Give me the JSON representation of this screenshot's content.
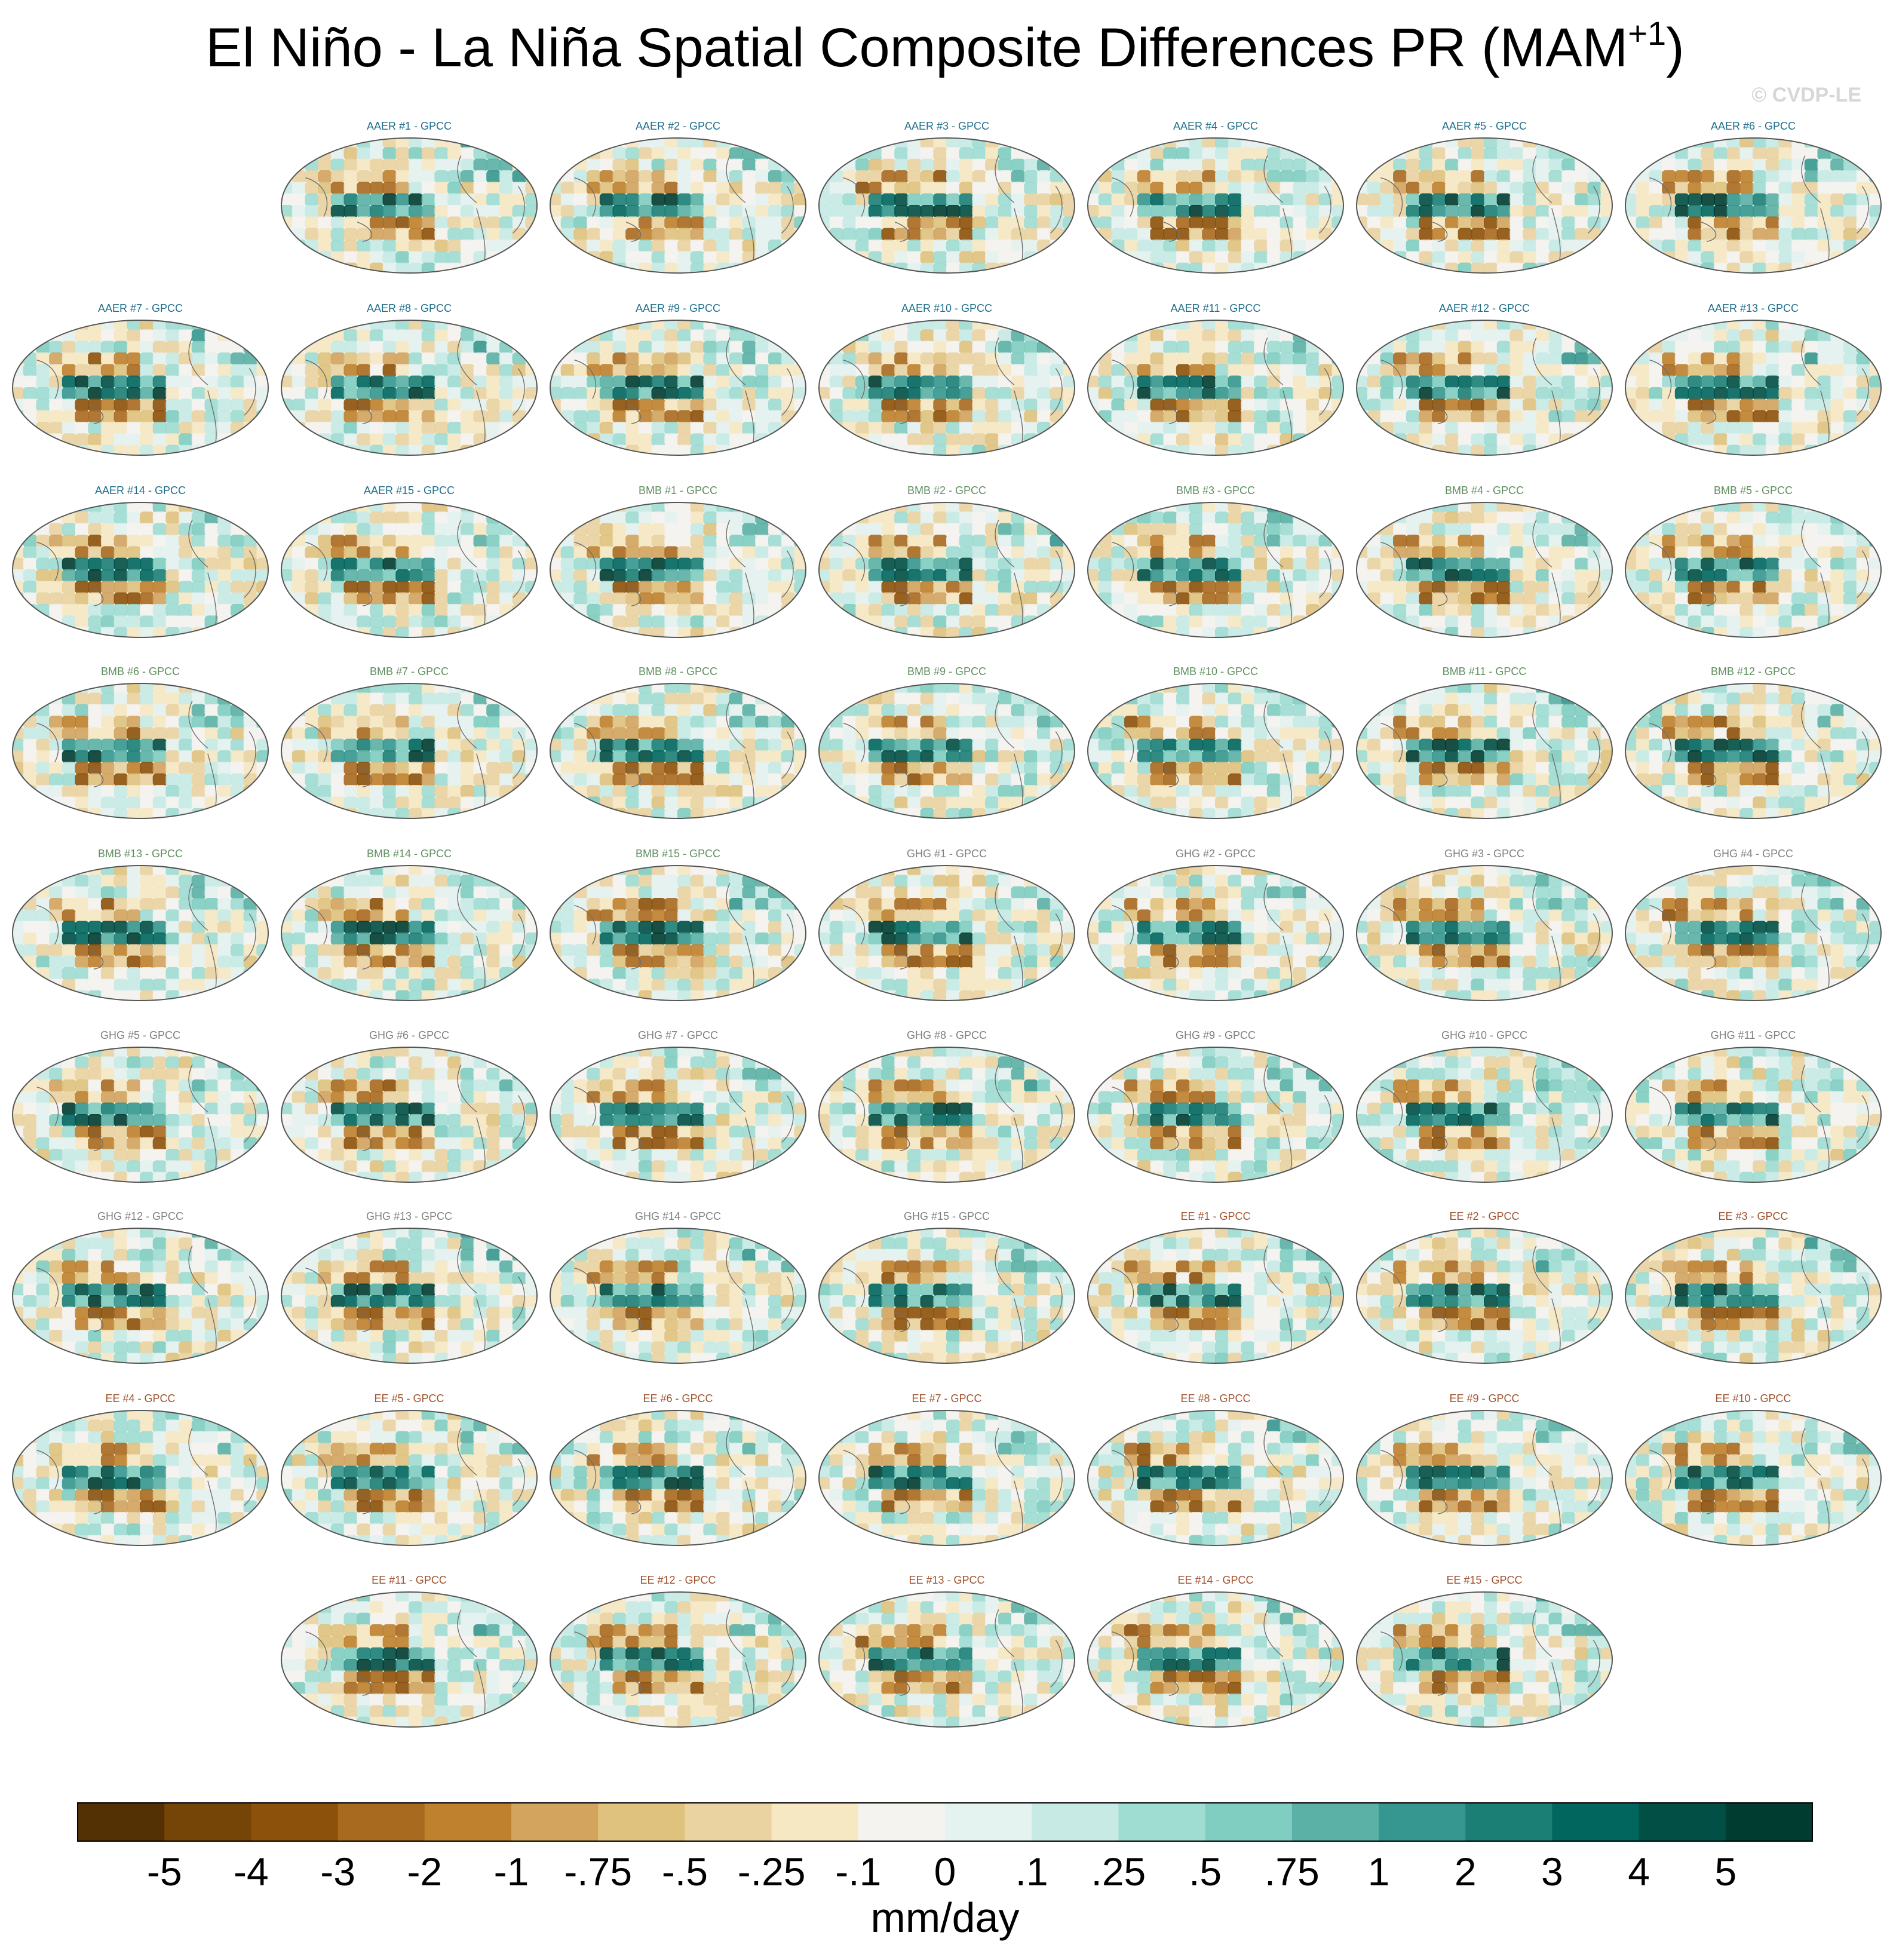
{
  "title": "El Niño - La Niña Spatial Composite Differences PR (MAM",
  "title_superscript": "+1",
  "title_close": ")",
  "copyright": "© CVDP-LE",
  "panel_groups": {
    "AAER": "#1f6f8b",
    "BMB": "#5f8f5f",
    "GHG": "#808080",
    "EE": "#a0522d"
  },
  "chart_data": {
    "type": "heatmap",
    "projection": "Robinson-like global map panels",
    "variable": "PR",
    "season": "MAM+1",
    "panels": [
      {
        "label": "AAER #1 - GPCC",
        "group": "AAER"
      },
      {
        "label": "AAER #2 - GPCC",
        "group": "AAER"
      },
      {
        "label": "AAER #3 - GPCC",
        "group": "AAER"
      },
      {
        "label": "AAER #4 - GPCC",
        "group": "AAER"
      },
      {
        "label": "AAER #5 - GPCC",
        "group": "AAER"
      },
      {
        "label": "AAER #6 - GPCC",
        "group": "AAER"
      },
      {
        "label": "AAER #7 - GPCC",
        "group": "AAER"
      },
      {
        "label": "AAER #8 - GPCC",
        "group": "AAER"
      },
      {
        "label": "AAER #9 - GPCC",
        "group": "AAER"
      },
      {
        "label": "AAER #10 - GPCC",
        "group": "AAER"
      },
      {
        "label": "AAER #11 - GPCC",
        "group": "AAER"
      },
      {
        "label": "AAER #12 - GPCC",
        "group": "AAER"
      },
      {
        "label": "AAER #13 - GPCC",
        "group": "AAER"
      },
      {
        "label": "AAER #14 - GPCC",
        "group": "AAER"
      },
      {
        "label": "AAER #15 - GPCC",
        "group": "AAER"
      },
      {
        "label": "BMB #1 - GPCC",
        "group": "BMB"
      },
      {
        "label": "BMB #2 - GPCC",
        "group": "BMB"
      },
      {
        "label": "BMB #3 - GPCC",
        "group": "BMB"
      },
      {
        "label": "BMB #4 - GPCC",
        "group": "BMB"
      },
      {
        "label": "BMB #5 - GPCC",
        "group": "BMB"
      },
      {
        "label": "BMB #6 - GPCC",
        "group": "BMB"
      },
      {
        "label": "BMB #7 - GPCC",
        "group": "BMB"
      },
      {
        "label": "BMB #8 - GPCC",
        "group": "BMB"
      },
      {
        "label": "BMB #9 - GPCC",
        "group": "BMB"
      },
      {
        "label": "BMB #10 - GPCC",
        "group": "BMB"
      },
      {
        "label": "BMB #11 - GPCC",
        "group": "BMB"
      },
      {
        "label": "BMB #12 - GPCC",
        "group": "BMB"
      },
      {
        "label": "BMB #13 - GPCC",
        "group": "BMB"
      },
      {
        "label": "BMB #14 - GPCC",
        "group": "BMB"
      },
      {
        "label": "BMB #15 - GPCC",
        "group": "BMB"
      },
      {
        "label": "GHG #1 - GPCC",
        "group": "GHG"
      },
      {
        "label": "GHG #2 - GPCC",
        "group": "GHG"
      },
      {
        "label": "GHG #3 - GPCC",
        "group": "GHG"
      },
      {
        "label": "GHG #4 - GPCC",
        "group": "GHG"
      },
      {
        "label": "GHG #5 - GPCC",
        "group": "GHG"
      },
      {
        "label": "GHG #6 - GPCC",
        "group": "GHG"
      },
      {
        "label": "GHG #7 - GPCC",
        "group": "GHG"
      },
      {
        "label": "GHG #8 - GPCC",
        "group": "GHG"
      },
      {
        "label": "GHG #9 - GPCC",
        "group": "GHG"
      },
      {
        "label": "GHG #10 - GPCC",
        "group": "GHG"
      },
      {
        "label": "GHG #11 - GPCC",
        "group": "GHG"
      },
      {
        "label": "GHG #12 - GPCC",
        "group": "GHG"
      },
      {
        "label": "GHG #13 - GPCC",
        "group": "GHG"
      },
      {
        "label": "GHG #14 - GPCC",
        "group": "GHG"
      },
      {
        "label": "GHG #15 - GPCC",
        "group": "GHG"
      },
      {
        "label": "EE #1 - GPCC",
        "group": "EE"
      },
      {
        "label": "EE #2 - GPCC",
        "group": "EE"
      },
      {
        "label": "EE #3 - GPCC",
        "group": "EE"
      },
      {
        "label": "EE #4 - GPCC",
        "group": "EE"
      },
      {
        "label": "EE #5 - GPCC",
        "group": "EE"
      },
      {
        "label": "EE #6 - GPCC",
        "group": "EE"
      },
      {
        "label": "EE #7 - GPCC",
        "group": "EE"
      },
      {
        "label": "EE #8 - GPCC",
        "group": "EE"
      },
      {
        "label": "EE #9 - GPCC",
        "group": "EE"
      },
      {
        "label": "EE #10 - GPCC",
        "group": "EE"
      },
      {
        "label": "EE #11 - GPCC",
        "group": "EE"
      },
      {
        "label": "EE #12 - GPCC",
        "group": "EE"
      },
      {
        "label": "EE #13 - GPCC",
        "group": "EE"
      },
      {
        "label": "EE #14 - GPCC",
        "group": "EE"
      },
      {
        "label": "EE #15 - GPCC",
        "group": "EE"
      }
    ],
    "colorbar": {
      "units": "mm/day",
      "tick_labels": [
        "-5",
        "-4",
        "-3",
        "-2",
        "-1",
        "-.75",
        "-.5",
        "-.25",
        "-.1",
        "0",
        ".1",
        ".25",
        ".5",
        ".75",
        "1",
        "2",
        "3",
        "4",
        "5"
      ],
      "colors": [
        "#543005",
        "#754407",
        "#8c510a",
        "#a86a1f",
        "#bf812d",
        "#d2a45e",
        "#dfc27d",
        "#ead3a1",
        "#f6e8c3",
        "#f5f3ef",
        "#e4f2f0",
        "#c7eae5",
        "#9fdcd2",
        "#80cdc1",
        "#5bb1a5",
        "#35978f",
        "#1c7f75",
        "#01665e",
        "#014f45",
        "#003c30"
      ]
    }
  }
}
